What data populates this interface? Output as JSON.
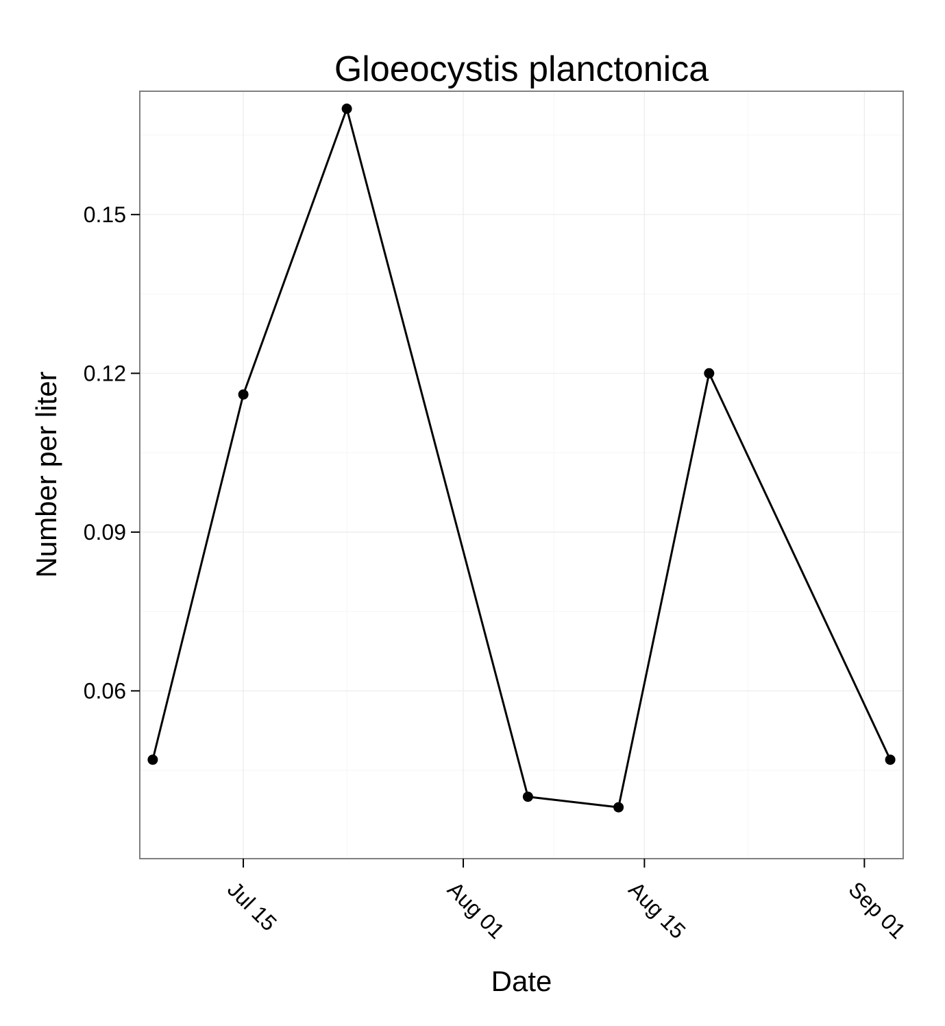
{
  "chart_data": {
    "type": "line",
    "title": "Gloeocystis planctonica",
    "xlabel": "Date",
    "ylabel": "Number per liter",
    "x_axis_type": "date",
    "xlim": [
      "2013-07-07",
      "2013-09-04"
    ],
    "ylim": [
      0.0283,
      0.1733
    ],
    "x_ticks": [
      {
        "date": "2013-07-15",
        "label": "Jul 15"
      },
      {
        "date": "2013-08-01",
        "label": "Aug 01"
      },
      {
        "date": "2013-08-15",
        "label": "Aug 15"
      },
      {
        "date": "2013-09-01",
        "label": "Sep 01"
      }
    ],
    "y_ticks": [
      {
        "value": 0.06,
        "label": "0.06"
      },
      {
        "value": 0.09,
        "label": "0.09"
      },
      {
        "value": 0.12,
        "label": "0.12"
      },
      {
        "value": 0.15,
        "label": "0.15"
      }
    ],
    "y_minor_ticks": [
      0.045,
      0.075,
      0.105,
      0.135,
      0.165
    ],
    "x_minor_ticks": [
      "2013-07-06",
      "2013-07-23",
      "2013-08-08",
      "2013-08-23"
    ],
    "grid": true,
    "legend": "none",
    "series": [
      {
        "x": [
          "2013-07-08",
          "2013-07-15",
          "2013-07-23",
          "2013-08-06",
          "2013-08-13",
          "2013-08-20",
          "2013-09-03"
        ],
        "y": [
          0.047,
          0.116,
          0.17,
          0.04,
          0.038,
          0.12,
          0.047
        ],
        "color": "#000000"
      }
    ]
  }
}
